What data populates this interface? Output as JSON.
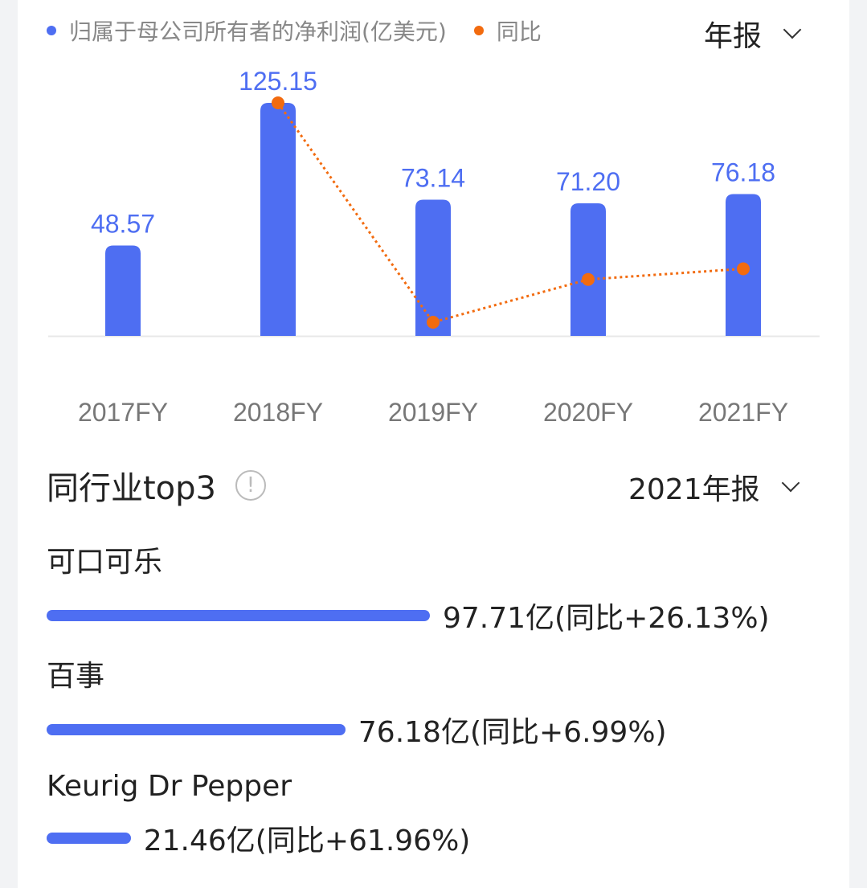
{
  "legend": {
    "net_profit": "归属于母公司所有者的净利润(亿美元)",
    "yoy": "同比"
  },
  "period_select": "年报",
  "colors": {
    "bar": "#4e6ef2",
    "line": "#f26b0f",
    "label": "#4e6ef2"
  },
  "chart_data": {
    "type": "bar+line",
    "categories": [
      "2017FY",
      "2018FY",
      "2019FY",
      "2020FY",
      "2021FY"
    ],
    "series": [
      {
        "name": "归属于母公司所有者的净利润(亿美元)",
        "type": "bar",
        "values": [
          48.57,
          125.15,
          73.14,
          71.2,
          76.18
        ],
        "labels": [
          "48.57",
          "125.15",
          "73.14",
          "71.20",
          "76.18"
        ]
      },
      {
        "name": "同比",
        "type": "line",
        "values": [
          null,
          157.7,
          -41.56,
          -2.65,
          6.99
        ]
      }
    ],
    "ylim": [
      0,
      125.15
    ]
  },
  "peers": {
    "title": "同行业top3",
    "period_select": "2021年报",
    "items": [
      {
        "name": "可口可乐",
        "value": 97.71,
        "text": "97.71亿(同比+26.13%)"
      },
      {
        "name": "百事",
        "value": 76.18,
        "text": "76.18亿(同比+6.99%)"
      },
      {
        "name": "Keurig Dr Pepper",
        "value": 21.46,
        "text": "21.46亿(同比+61.96%)"
      }
    ]
  }
}
